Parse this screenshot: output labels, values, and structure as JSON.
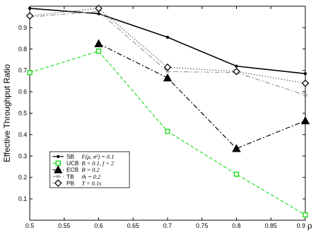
{
  "chart_data": {
    "type": "line",
    "xlabel": "ρ",
    "ylabel": "Effective Throughput Ratio",
    "xlim": [
      0.5,
      0.9
    ],
    "ylim": [
      0,
      1
    ],
    "xticks": [
      "0.5",
      "0.55",
      "0.6",
      "0.65",
      "0.7",
      "0.75",
      "0.8",
      "0.85",
      "0.9"
    ],
    "yticks": [
      "0.1",
      "0.2",
      "0.3",
      "0.4",
      "0.5",
      "0.6",
      "0.7",
      "0.8",
      "0.9"
    ],
    "grid": false,
    "legend_position": "bottom-left",
    "series": [
      {
        "name": "SB",
        "param": "F(μ, σ²) = 0.1",
        "color": "#000000",
        "style": "solid",
        "marker": "dot",
        "x": [
          0.5,
          0.6,
          0.7,
          0.8,
          0.9
        ],
        "y": [
          0.99,
          0.965,
          0.855,
          0.72,
          0.685
        ]
      },
      {
        "name": "UCB",
        "param": "B = 0.1, f = 2",
        "color": "#22dd22",
        "style": "dashed",
        "marker": "square",
        "x": [
          0.5,
          0.6,
          0.7,
          0.8,
          0.9
        ],
        "y": [
          0.69,
          0.79,
          0.415,
          0.215,
          0.025
        ]
      },
      {
        "name": "ECB",
        "param": "B = 0.2",
        "color": "#000000",
        "style": "dashdot",
        "marker": "triangle",
        "x": [
          0.6,
          0.7,
          0.8,
          0.9
        ],
        "y": [
          0.825,
          0.665,
          0.335,
          0.465
        ]
      },
      {
        "name": "TB",
        "param": "th = 0.2",
        "color": "#999999",
        "style": "dashdot",
        "marker": "star",
        "x": [
          0.5,
          0.6,
          0.7,
          0.8,
          0.9
        ],
        "y": [
          0.95,
          0.975,
          0.695,
          0.69,
          0.585
        ]
      },
      {
        "name": "PB",
        "param": "T = 0.1s",
        "color": "#555555",
        "style": "dotted",
        "marker": "diamond",
        "x": [
          0.5,
          0.6,
          0.7,
          0.8,
          0.9
        ],
        "y": [
          0.955,
          0.99,
          0.715,
          0.695,
          0.64
        ]
      }
    ]
  }
}
